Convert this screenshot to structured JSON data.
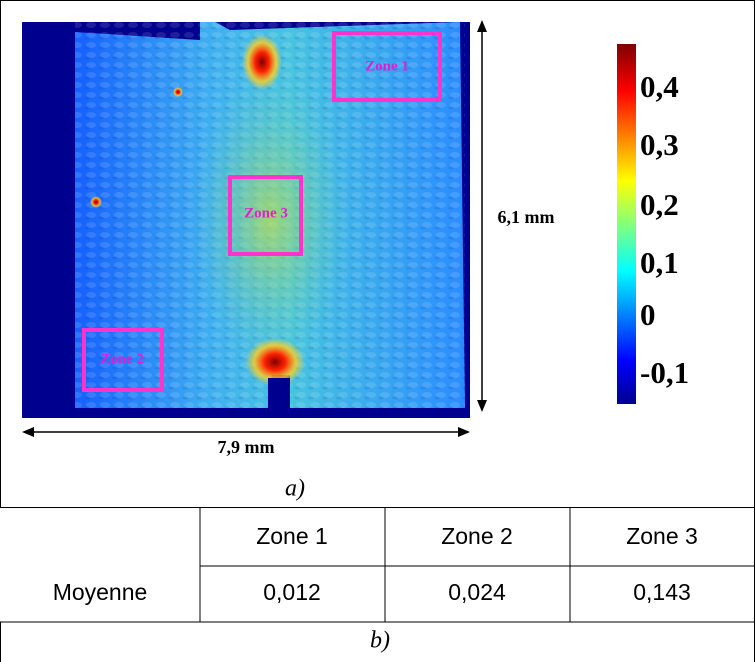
{
  "figure": {
    "map": {
      "zones": [
        "Zone 1",
        "Zone 2",
        "Zone 3"
      ],
      "height_label": "6,1 mm",
      "width_label": "7,9 mm",
      "colorbar_labels": [
        "0,4",
        "0,3",
        "0,2",
        "0,1",
        "0",
        "-0,1"
      ]
    },
    "caption_a": "a)",
    "table": {
      "header": [
        "Zone 1",
        "Zone 2",
        "Zone 3"
      ],
      "rows": [
        [
          "Moyenne",
          "0,012",
          "0,024",
          "0,143"
        ]
      ]
    },
    "caption_b": "b)"
  }
}
